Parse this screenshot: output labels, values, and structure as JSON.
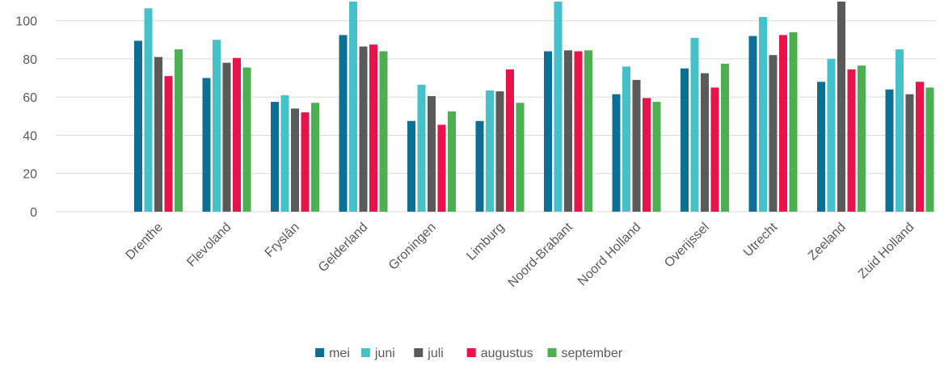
{
  "chart_data": {
    "type": "bar",
    "ylim": [
      0,
      110
    ],
    "yticks": [
      0,
      20,
      40,
      60,
      80,
      100
    ],
    "grid": true,
    "legend_position": "bottom",
    "categories": [
      "Drenthe",
      "Flevoland",
      "Fryslân",
      "Gelderland",
      "Groningen",
      "Limburg",
      "Noord-Brabant",
      "Noord Holland",
      "Overijssel",
      "Utrecht",
      "Zeeland",
      "Zuid Holland"
    ],
    "series": [
      {
        "name": "mei",
        "color": "#0e6f94",
        "values": [
          89.5,
          70,
          57.5,
          92.5,
          47.5,
          47.5,
          84,
          61.5,
          75,
          92,
          68,
          64
        ]
      },
      {
        "name": "juni",
        "color": "#45c2c9",
        "values": [
          106.5,
          90,
          61,
          110,
          66.5,
          63.5,
          110,
          76,
          91,
          102,
          80,
          85
        ]
      },
      {
        "name": "juli",
        "color": "#5a5a5a",
        "values": [
          81,
          78,
          54,
          86.5,
          60.5,
          63,
          84.5,
          69,
          72.5,
          82,
          110,
          61.5
        ]
      },
      {
        "name": "augustus",
        "color": "#e8134a",
        "values": [
          71,
          80.5,
          52,
          87.5,
          45.5,
          74.5,
          84,
          59.5,
          65,
          92.5,
          74.5,
          68
        ]
      },
      {
        "name": "september",
        "color": "#4caf50",
        "values": [
          85,
          75.5,
          57,
          84,
          52.5,
          57,
          84.5,
          57.5,
          77.5,
          94,
          76.5,
          65
        ]
      }
    ]
  }
}
